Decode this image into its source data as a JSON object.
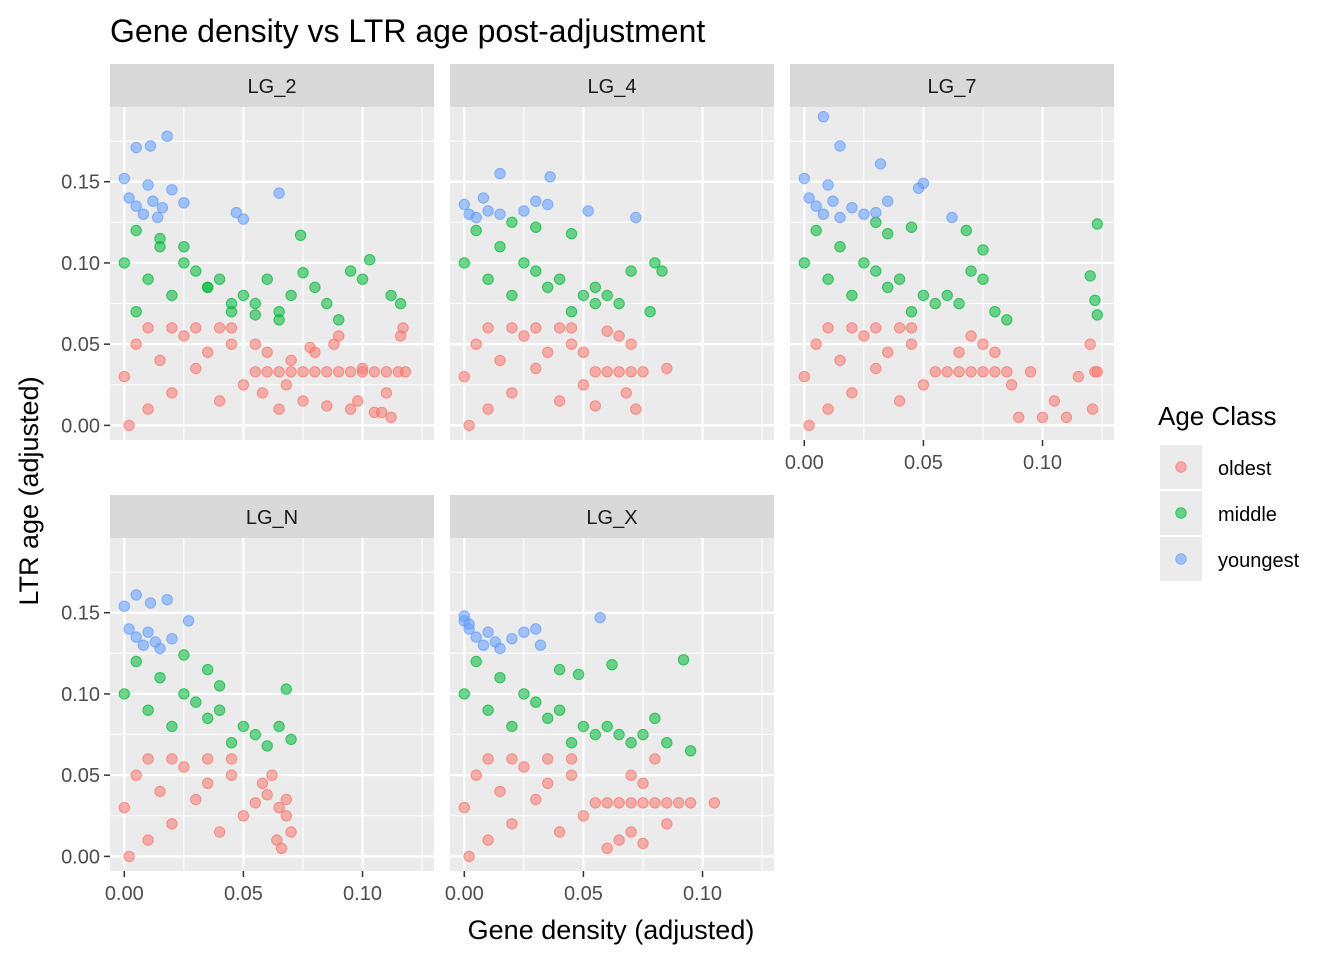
{
  "chart_data": {
    "type": "scatter",
    "title": "Gene density vs LTR age post-adjustment",
    "xlabel": "Gene density (adjusted)",
    "ylabel": "LTR age (adjusted)",
    "xlim": [
      -0.006,
      0.13
    ],
    "ylim": [
      -0.009,
      0.196
    ],
    "x_ticks": [
      0.0,
      0.05,
      0.1
    ],
    "x_tick_labels": [
      "0.00",
      "0.05",
      "0.10"
    ],
    "y_ticks": [
      0.0,
      0.05,
      0.1,
      0.15
    ],
    "y_tick_labels": [
      "0.00",
      "0.05",
      "0.10",
      "0.15"
    ],
    "grid": true,
    "legend": {
      "title": "Age Class",
      "position": "right",
      "entries": [
        {
          "label": "oldest",
          "color": "#F8766D"
        },
        {
          "label": "middle",
          "color": "#00BA38"
        },
        {
          "label": "youngest",
          "color": "#619CFF"
        }
      ]
    },
    "panels": [
      {
        "label": "LG_2",
        "series": [
          {
            "name": "oldest",
            "color": "#F8766D",
            "x": [
              0.0,
              0.005,
              0.01,
              0.015,
              0.02,
              0.025,
              0.03,
              0.035,
              0.04,
              0.045,
              0.05,
              0.055,
              0.06,
              0.065,
              0.07,
              0.075,
              0.08,
              0.085,
              0.09,
              0.095,
              0.1,
              0.105,
              0.11,
              0.115,
              0.118,
              0.055,
              0.06,
              0.07,
              0.08,
              0.09,
              0.1,
              0.11,
              0.117,
              0.065,
              0.075,
              0.085,
              0.095,
              0.105,
              0.112,
              0.058,
              0.068,
              0.078,
              0.088,
              0.098,
              0.108,
              0.116,
              0.045,
              0.04,
              0.03,
              0.02,
              0.01,
              0.002
            ],
            "y": [
              0.03,
              0.05,
              0.01,
              0.04,
              0.02,
              0.055,
              0.035,
              0.045,
              0.015,
              0.05,
              0.025,
              0.033,
              0.033,
              0.033,
              0.033,
              0.033,
              0.033,
              0.033,
              0.033,
              0.033,
              0.033,
              0.033,
              0.033,
              0.033,
              0.033,
              0.05,
              0.045,
              0.04,
              0.045,
              0.055,
              0.035,
              0.02,
              0.06,
              0.01,
              0.015,
              0.012,
              0.01,
              0.008,
              0.005,
              0.02,
              0.025,
              0.048,
              0.05,
              0.015,
              0.008,
              0.055,
              0.06,
              0.06,
              0.06,
              0.06,
              0.06,
              0.0
            ]
          },
          {
            "name": "middle",
            "color": "#00BA38",
            "x": [
              0.0,
              0.005,
              0.01,
              0.015,
              0.02,
              0.025,
              0.03,
              0.035,
              0.04,
              0.045,
              0.05,
              0.055,
              0.06,
              0.065,
              0.07,
              0.075,
              0.08,
              0.085,
              0.09,
              0.095,
              0.1,
              0.103,
              0.112,
              0.116,
              0.074,
              0.065,
              0.055,
              0.045,
              0.035,
              0.025,
              0.015,
              0.005
            ],
            "y": [
              0.1,
              0.12,
              0.09,
              0.11,
              0.08,
              0.1,
              0.095,
              0.085,
              0.09,
              0.07,
              0.08,
              0.075,
              0.09,
              0.07,
              0.08,
              0.094,
              0.085,
              0.075,
              0.065,
              0.095,
              0.09,
              0.102,
              0.08,
              0.075,
              0.117,
              0.065,
              0.068,
              0.075,
              0.085,
              0.11,
              0.115,
              0.07
            ]
          },
          {
            "name": "youngest",
            "color": "#619CFF",
            "x": [
              0.0,
              0.002,
              0.005,
              0.008,
              0.01,
              0.012,
              0.014,
              0.016,
              0.02,
              0.025,
              0.047,
              0.05,
              0.065,
              0.005,
              0.011,
              0.018
            ],
            "y": [
              0.152,
              0.14,
              0.135,
              0.13,
              0.148,
              0.138,
              0.128,
              0.134,
              0.145,
              0.137,
              0.131,
              0.127,
              0.143,
              0.171,
              0.172,
              0.178
            ]
          }
        ]
      },
      {
        "label": "LG_4",
        "series": [
          {
            "name": "oldest",
            "color": "#F8766D",
            "x": [
              0.0,
              0.005,
              0.01,
              0.015,
              0.02,
              0.025,
              0.03,
              0.035,
              0.04,
              0.045,
              0.05,
              0.055,
              0.06,
              0.065,
              0.07,
              0.075,
              0.085,
              0.06,
              0.065,
              0.07,
              0.05,
              0.055,
              0.045,
              0.04,
              0.03,
              0.02,
              0.01,
              0.002,
              0.068,
              0.072
            ],
            "y": [
              0.03,
              0.05,
              0.01,
              0.04,
              0.02,
              0.055,
              0.035,
              0.045,
              0.015,
              0.05,
              0.025,
              0.033,
              0.033,
              0.033,
              0.033,
              0.033,
              0.035,
              0.058,
              0.055,
              0.05,
              0.045,
              0.012,
              0.06,
              0.06,
              0.06,
              0.06,
              0.06,
              0.0,
              0.02,
              0.01
            ]
          },
          {
            "name": "middle",
            "color": "#00BA38",
            "x": [
              0.0,
              0.005,
              0.01,
              0.015,
              0.02,
              0.025,
              0.03,
              0.035,
              0.04,
              0.045,
              0.05,
              0.055,
              0.06,
              0.065,
              0.07,
              0.08,
              0.083,
              0.078,
              0.03,
              0.045,
              0.055,
              0.02
            ],
            "y": [
              0.1,
              0.12,
              0.09,
              0.11,
              0.08,
              0.1,
              0.095,
              0.085,
              0.09,
              0.07,
              0.08,
              0.075,
              0.08,
              0.075,
              0.095,
              0.1,
              0.095,
              0.07,
              0.122,
              0.118,
              0.085,
              0.125
            ]
          },
          {
            "name": "youngest",
            "color": "#619CFF",
            "x": [
              0.0,
              0.002,
              0.005,
              0.008,
              0.01,
              0.015,
              0.025,
              0.03,
              0.035,
              0.052,
              0.072,
              0.015,
              0.036
            ],
            "y": [
              0.136,
              0.13,
              0.128,
              0.14,
              0.132,
              0.13,
              0.132,
              0.138,
              0.136,
              0.132,
              0.128,
              0.155,
              0.153
            ]
          }
        ]
      },
      {
        "label": "LG_7",
        "series": [
          {
            "name": "oldest",
            "color": "#F8766D",
            "x": [
              0.0,
              0.005,
              0.01,
              0.015,
              0.02,
              0.025,
              0.03,
              0.035,
              0.04,
              0.045,
              0.05,
              0.055,
              0.06,
              0.065,
              0.07,
              0.075,
              0.08,
              0.085,
              0.095,
              0.105,
              0.11,
              0.115,
              0.12,
              0.122,
              0.123,
              0.121,
              0.065,
              0.07,
              0.075,
              0.08,
              0.087,
              0.09,
              0.1,
              0.045,
              0.04,
              0.03,
              0.02,
              0.01,
              0.002
            ],
            "y": [
              0.03,
              0.05,
              0.01,
              0.04,
              0.02,
              0.055,
              0.035,
              0.045,
              0.015,
              0.05,
              0.025,
              0.033,
              0.033,
              0.033,
              0.033,
              0.033,
              0.033,
              0.033,
              0.033,
              0.015,
              0.005,
              0.03,
              0.05,
              0.033,
              0.033,
              0.01,
              0.045,
              0.055,
              0.05,
              0.045,
              0.025,
              0.005,
              0.005,
              0.06,
              0.06,
              0.06,
              0.06,
              0.06,
              0.0
            ]
          },
          {
            "name": "middle",
            "color": "#00BA38",
            "x": [
              0.0,
              0.005,
              0.01,
              0.015,
              0.02,
              0.025,
              0.03,
              0.035,
              0.04,
              0.045,
              0.05,
              0.055,
              0.06,
              0.065,
              0.07,
              0.075,
              0.08,
              0.085,
              0.123,
              0.12,
              0.122,
              0.123,
              0.068,
              0.075,
              0.045,
              0.035,
              0.03
            ],
            "y": [
              0.1,
              0.12,
              0.09,
              0.11,
              0.08,
              0.1,
              0.095,
              0.085,
              0.09,
              0.07,
              0.08,
              0.075,
              0.08,
              0.075,
              0.095,
              0.09,
              0.07,
              0.065,
              0.124,
              0.092,
              0.077,
              0.068,
              0.12,
              0.108,
              0.122,
              0.118,
              0.125
            ]
          },
          {
            "name": "youngest",
            "color": "#619CFF",
            "x": [
              0.0,
              0.002,
              0.005,
              0.008,
              0.01,
              0.012,
              0.015,
              0.02,
              0.025,
              0.03,
              0.035,
              0.05,
              0.062,
              0.008,
              0.015,
              0.032,
              0.048
            ],
            "y": [
              0.152,
              0.14,
              0.135,
              0.13,
              0.148,
              0.138,
              0.128,
              0.134,
              0.13,
              0.131,
              0.138,
              0.149,
              0.128,
              0.19,
              0.172,
              0.161,
              0.146
            ]
          }
        ]
      },
      {
        "label": "LG_N",
        "series": [
          {
            "name": "oldest",
            "color": "#F8766D",
            "x": [
              0.0,
              0.005,
              0.01,
              0.015,
              0.02,
              0.025,
              0.03,
              0.035,
              0.04,
              0.045,
              0.05,
              0.055,
              0.06,
              0.065,
              0.068,
              0.07,
              0.066,
              0.062,
              0.058,
              0.068,
              0.064,
              0.045,
              0.035,
              0.02,
              0.01,
              0.002
            ],
            "y": [
              0.03,
              0.05,
              0.01,
              0.04,
              0.02,
              0.055,
              0.035,
              0.045,
              0.015,
              0.05,
              0.025,
              0.033,
              0.038,
              0.03,
              0.035,
              0.015,
              0.005,
              0.05,
              0.045,
              0.025,
              0.01,
              0.06,
              0.06,
              0.06,
              0.06,
              0.0
            ]
          },
          {
            "name": "middle",
            "color": "#00BA38",
            "x": [
              0.0,
              0.005,
              0.01,
              0.015,
              0.02,
              0.025,
              0.03,
              0.035,
              0.04,
              0.045,
              0.05,
              0.055,
              0.06,
              0.065,
              0.07,
              0.068,
              0.025,
              0.035,
              0.04
            ],
            "y": [
              0.1,
              0.12,
              0.09,
              0.11,
              0.08,
              0.1,
              0.095,
              0.085,
              0.09,
              0.07,
              0.08,
              0.075,
              0.068,
              0.08,
              0.072,
              0.103,
              0.124,
              0.115,
              0.105
            ]
          },
          {
            "name": "youngest",
            "color": "#619CFF",
            "x": [
              0.0,
              0.002,
              0.005,
              0.008,
              0.01,
              0.013,
              0.015,
              0.02,
              0.027,
              0.005,
              0.011,
              0.018
            ],
            "y": [
              0.154,
              0.14,
              0.135,
              0.13,
              0.138,
              0.132,
              0.128,
              0.134,
              0.145,
              0.161,
              0.156,
              0.158
            ]
          }
        ]
      },
      {
        "label": "LG_X",
        "series": [
          {
            "name": "oldest",
            "color": "#F8766D",
            "x": [
              0.0,
              0.005,
              0.01,
              0.015,
              0.02,
              0.025,
              0.03,
              0.035,
              0.04,
              0.045,
              0.05,
              0.055,
              0.06,
              0.065,
              0.07,
              0.075,
              0.08,
              0.085,
              0.09,
              0.095,
              0.105,
              0.07,
              0.075,
              0.08,
              0.085,
              0.065,
              0.06,
              0.07,
              0.075,
              0.045,
              0.035,
              0.02,
              0.01,
              0.002
            ],
            "y": [
              0.03,
              0.05,
              0.01,
              0.04,
              0.02,
              0.055,
              0.035,
              0.045,
              0.015,
              0.05,
              0.025,
              0.033,
              0.033,
              0.033,
              0.033,
              0.033,
              0.033,
              0.033,
              0.033,
              0.033,
              0.033,
              0.05,
              0.045,
              0.06,
              0.02,
              0.01,
              0.005,
              0.015,
              0.008,
              0.06,
              0.06,
              0.06,
              0.06,
              0.0
            ]
          },
          {
            "name": "middle",
            "color": "#00BA38",
            "x": [
              0.0,
              0.005,
              0.01,
              0.015,
              0.02,
              0.025,
              0.03,
              0.035,
              0.04,
              0.045,
              0.05,
              0.055,
              0.06,
              0.065,
              0.07,
              0.075,
              0.08,
              0.085,
              0.092,
              0.095,
              0.062,
              0.048,
              0.04
            ],
            "y": [
              0.1,
              0.12,
              0.09,
              0.11,
              0.08,
              0.1,
              0.095,
              0.085,
              0.09,
              0.07,
              0.08,
              0.075,
              0.08,
              0.075,
              0.07,
              0.075,
              0.085,
              0.07,
              0.121,
              0.065,
              0.118,
              0.112,
              0.115
            ]
          },
          {
            "name": "youngest",
            "color": "#619CFF",
            "x": [
              0.0,
              0.002,
              0.005,
              0.008,
              0.01,
              0.013,
              0.015,
              0.02,
              0.025,
              0.03,
              0.032,
              0.057,
              0.0,
              0.002
            ],
            "y": [
              0.148,
              0.14,
              0.135,
              0.13,
              0.138,
              0.132,
              0.128,
              0.134,
              0.138,
              0.14,
              0.13,
              0.147,
              0.145,
              0.143
            ]
          }
        ]
      }
    ]
  }
}
